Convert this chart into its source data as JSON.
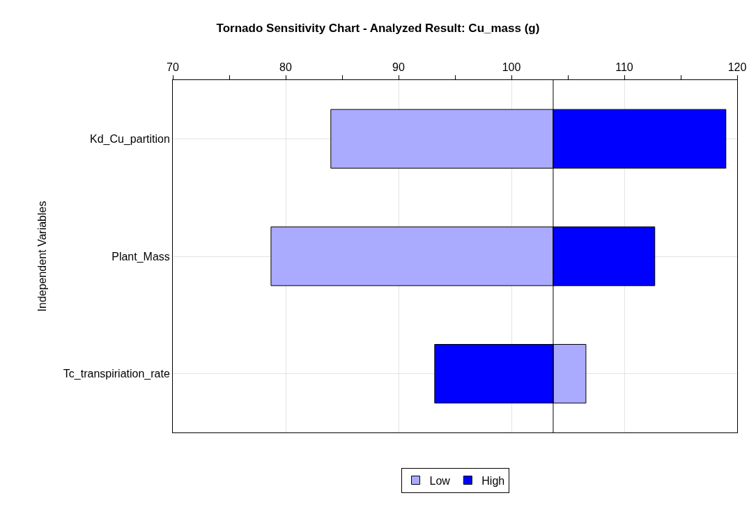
{
  "chart_data": {
    "type": "bar",
    "orientation": "horizontal",
    "title": "Tornado Sensitivity Chart - Analyzed Result: Cu_mass (g)",
    "ylabel": "Independent Variables",
    "categories": [
      "Kd_Cu_partition",
      "Plant_Mass",
      "Tc_transpiriation_rate"
    ],
    "series": [
      {
        "name": "Low",
        "color": "#aaaaff",
        "base": [
          84.0,
          78.7,
          103.7
        ],
        "values": [
          19.7,
          25.0,
          2.9
        ]
      },
      {
        "name": "High",
        "color": "#0000ff",
        "base": [
          103.7,
          103.7,
          93.2
        ],
        "values": [
          15.3,
          9.0,
          10.5
        ]
      }
    ],
    "xlim": [
      70,
      120
    ],
    "xticks": [
      70,
      {
        "value": 75,
        "label": null
      },
      80,
      {
        "value": 85,
        "label": null
      },
      90,
      {
        "value": 95,
        "label": null
      },
      100,
      {
        "value": 105,
        "label": null
      },
      110,
      {
        "value": 115,
        "label": null
      },
      120
    ],
    "ref_lines": [
      {
        "axis": "x",
        "value": 103.7,
        "label": null,
        "color": "#000000"
      }
    ],
    "grid": true,
    "legend": "bottom"
  }
}
